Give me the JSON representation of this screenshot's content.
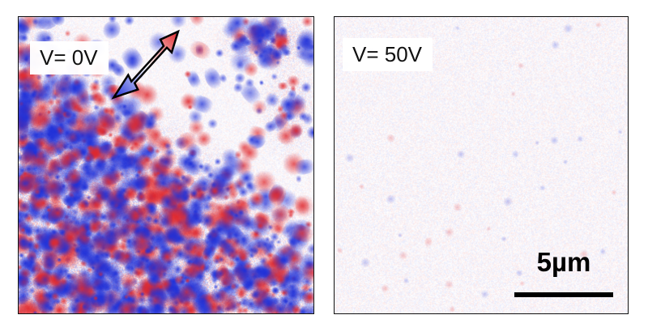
{
  "panels": [
    {
      "label": "V= 0V"
    },
    {
      "label": "V= 50V"
    }
  ],
  "scale_bar": {
    "label": "5µm"
  },
  "colors": {
    "positive": "#e0282d",
    "negative": "#1e2fd8",
    "neutral": "#ffffff"
  }
}
